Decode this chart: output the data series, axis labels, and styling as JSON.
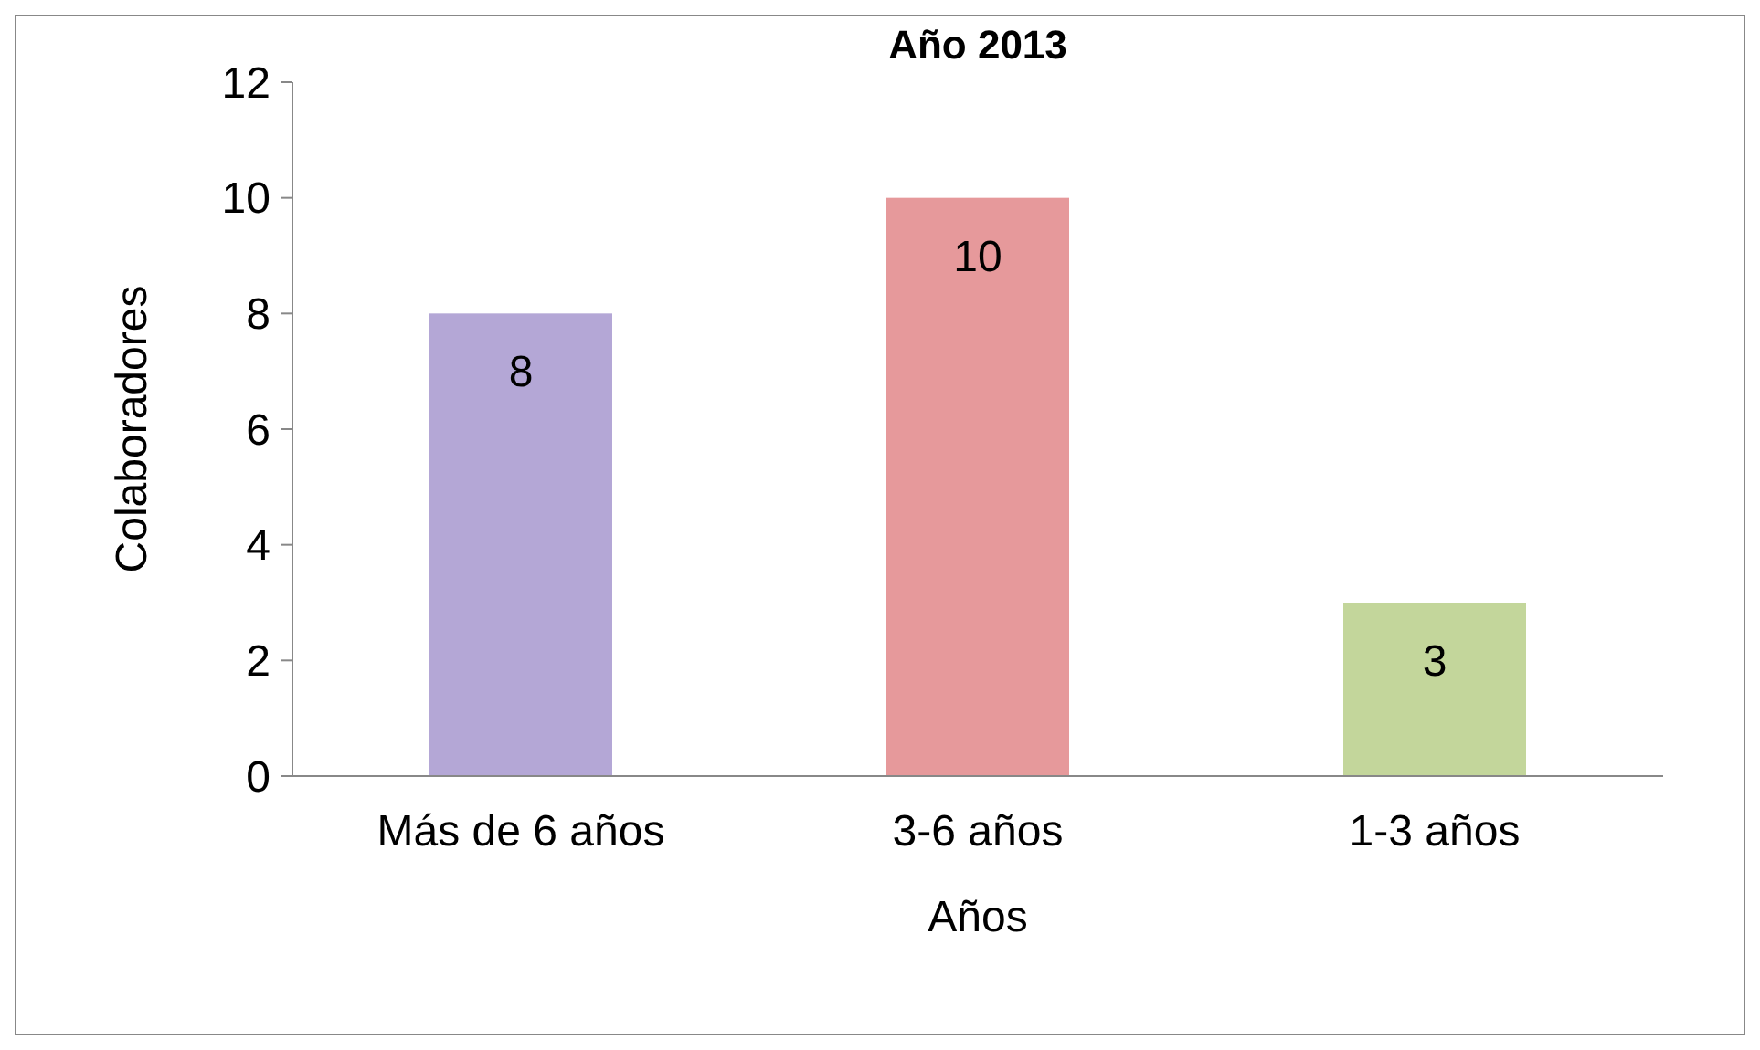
{
  "chart_data": {
    "type": "bar",
    "title": "Año 2013",
    "xlabel": "Años",
    "ylabel": "Colaboradores",
    "categories": [
      "Más de 6 años",
      "3-6 años",
      "1-3 años"
    ],
    "values": [
      8,
      10,
      3
    ],
    "colors": [
      "#b4a7d6",
      "#e6999b",
      "#c3d69b"
    ],
    "ylim": [
      0,
      12
    ],
    "yticks": [
      0,
      2,
      4,
      6,
      8,
      10,
      12
    ],
    "data_labels": true
  }
}
